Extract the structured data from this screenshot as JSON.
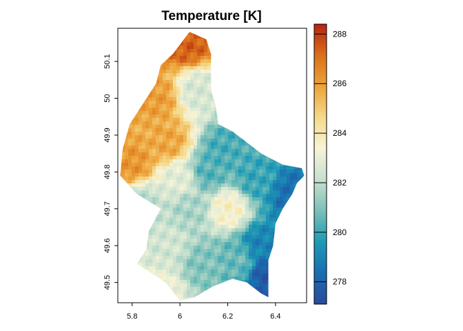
{
  "title": "Temperature [K]",
  "chart_data": {
    "type": "heatmap",
    "title": "Temperature [K]",
    "xlabel": "",
    "ylabel": "",
    "xlim": [
      5.74,
      6.53
    ],
    "ylim": [
      49.445,
      50.19
    ],
    "x_ticks": [
      5.8,
      6.0,
      6.2,
      6.4
    ],
    "x_tick_labels": [
      "5.8",
      "6",
      "6.2",
      "6.4"
    ],
    "y_ticks": [
      49.5,
      49.6,
      49.7,
      49.8,
      49.9,
      50.0,
      50.1
    ],
    "y_tick_labels": [
      "49.5",
      "49.6",
      "49.7",
      "49.8",
      "49.9",
      "50",
      "50.1"
    ],
    "color_scale": {
      "min": 277.1,
      "max": 288.4,
      "ticks": [
        278,
        280,
        282,
        284,
        286,
        288
      ],
      "tick_labels": [
        "278",
        "280",
        "282",
        "284",
        "286",
        "288"
      ],
      "stops": [
        "#2a4a9c",
        "#1a6eb0",
        "#1d9ab5",
        "#7cc0b8",
        "#c8e0cf",
        "#f6f4d8",
        "#f5d98a",
        "#eda33a",
        "#d9701a",
        "#b8230f"
      ]
    },
    "region_outline_lonlat": [
      [
        6.04,
        50.18
      ],
      [
        6.11,
        50.16
      ],
      [
        6.13,
        50.12
      ],
      [
        6.13,
        50.02
      ],
      [
        6.15,
        49.98
      ],
      [
        6.16,
        49.93
      ],
      [
        6.22,
        49.91
      ],
      [
        6.28,
        49.88
      ],
      [
        6.34,
        49.85
      ],
      [
        6.43,
        49.82
      ],
      [
        6.51,
        49.81
      ],
      [
        6.52,
        49.79
      ],
      [
        6.49,
        49.77
      ],
      [
        6.47,
        49.74
      ],
      [
        6.43,
        49.7
      ],
      [
        6.4,
        49.66
      ],
      [
        6.39,
        49.6
      ],
      [
        6.37,
        49.56
      ],
      [
        6.37,
        49.46
      ],
      [
        6.34,
        49.47
      ],
      [
        6.28,
        49.5
      ],
      [
        6.22,
        49.51
      ],
      [
        6.14,
        49.49
      ],
      [
        6.06,
        49.46
      ],
      [
        6.0,
        49.45
      ],
      [
        5.94,
        49.5
      ],
      [
        5.87,
        49.53
      ],
      [
        5.82,
        49.55
      ],
      [
        5.86,
        49.59
      ],
      [
        5.87,
        49.64
      ],
      [
        5.92,
        49.7
      ],
      [
        5.87,
        49.72
      ],
      [
        5.82,
        49.74
      ],
      [
        5.75,
        49.79
      ],
      [
        5.76,
        49.86
      ],
      [
        5.79,
        49.93
      ],
      [
        5.84,
        49.98
      ],
      [
        5.9,
        50.04
      ],
      [
        5.92,
        50.09
      ],
      [
        5.97,
        50.12
      ]
    ],
    "value_field_description_anchors": [
      {
        "lon": 6.03,
        "lat": 50.15,
        "value": 287.4
      },
      {
        "lon": 5.9,
        "lat": 50.0,
        "value": 286.0
      },
      {
        "lon": 5.8,
        "lat": 49.82,
        "value": 286.2
      },
      {
        "lon": 5.95,
        "lat": 49.88,
        "value": 285.8
      },
      {
        "lon": 6.08,
        "lat": 50.02,
        "value": 282.5
      },
      {
        "lon": 6.18,
        "lat": 49.86,
        "value": 280.2
      },
      {
        "lon": 6.32,
        "lat": 49.78,
        "value": 280.0
      },
      {
        "lon": 6.47,
        "lat": 49.74,
        "value": 278.4
      },
      {
        "lon": 6.37,
        "lat": 49.52,
        "value": 277.6
      },
      {
        "lon": 6.34,
        "lat": 49.6,
        "value": 279.0
      },
      {
        "lon": 6.2,
        "lat": 49.7,
        "value": 283.6
      },
      {
        "lon": 6.05,
        "lat": 49.7,
        "value": 281.6
      },
      {
        "lon": 5.95,
        "lat": 49.6,
        "value": 282.4
      },
      {
        "lon": 5.92,
        "lat": 49.48,
        "value": 283.2
      },
      {
        "lon": 6.1,
        "lat": 49.55,
        "value": 281.0
      },
      {
        "lon": 6.24,
        "lat": 49.56,
        "value": 280.6
      },
      {
        "lon": 6.12,
        "lat": 49.8,
        "value": 280.4
      },
      {
        "lon": 6.0,
        "lat": 49.78,
        "value": 282.8
      },
      {
        "lon": 5.84,
        "lat": 49.72,
        "value": 282.0
      }
    ]
  }
}
